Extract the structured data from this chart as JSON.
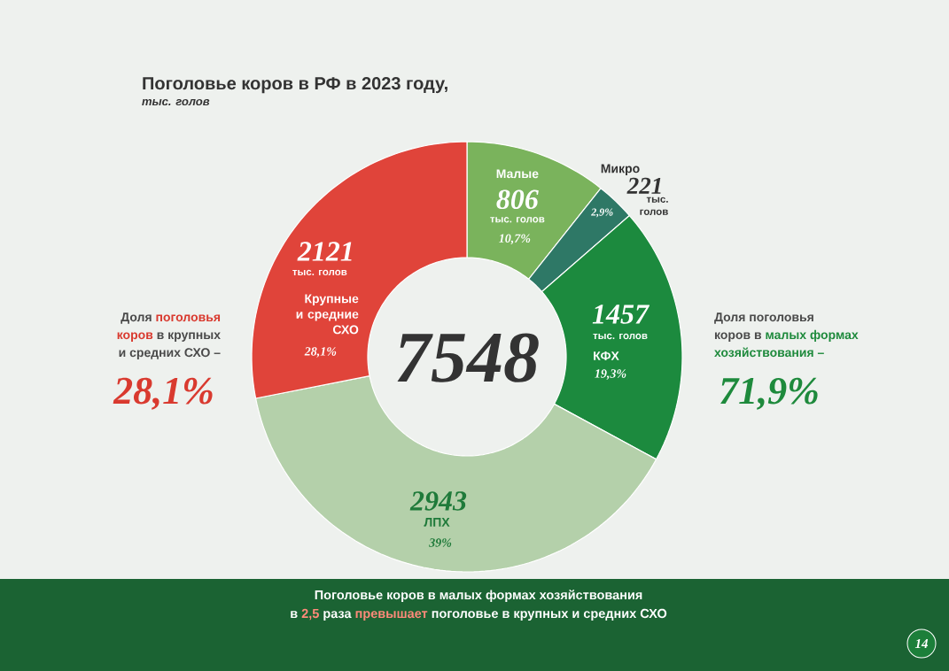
{
  "chart_data": {
    "type": "donut",
    "title": "Поголовье коров в РФ в 2023 году,",
    "subtitle": "тыс. голов",
    "categories": [
      "Малые",
      "Микро",
      "КФХ",
      "ЛПХ",
      "Крупные и средние СХО"
    ],
    "values": [
      806,
      221,
      1457,
      2943,
      2121
    ],
    "colors": [
      "#7ab35c",
      "#2e7866",
      "#1c8a3e",
      "#b4d0aa",
      "#e0443a"
    ],
    "data_labels": true,
    "annotations": [
      "Доля",
      "поголовья",
      "коров",
      "в крупных",
      "и средних СХО –",
      "28,1%",
      "Доля поголовья",
      "коров в",
      "малых формах",
      "хозяйствования –",
      "71,9%",
      "7548",
      "10,7%",
      "2,9%",
      "19,3%",
      "39%",
      "28,1%",
      "тыс. голов",
      "тыс.",
      "голов",
      "тыс. голов",
      "тыс. голов",
      "Поголовье коров в малых формах хозяйствования",
      "в",
      "2,5",
      "раза",
      "превышает",
      "поголовье в крупных и средних СХО",
      "14"
    ]
  }
}
